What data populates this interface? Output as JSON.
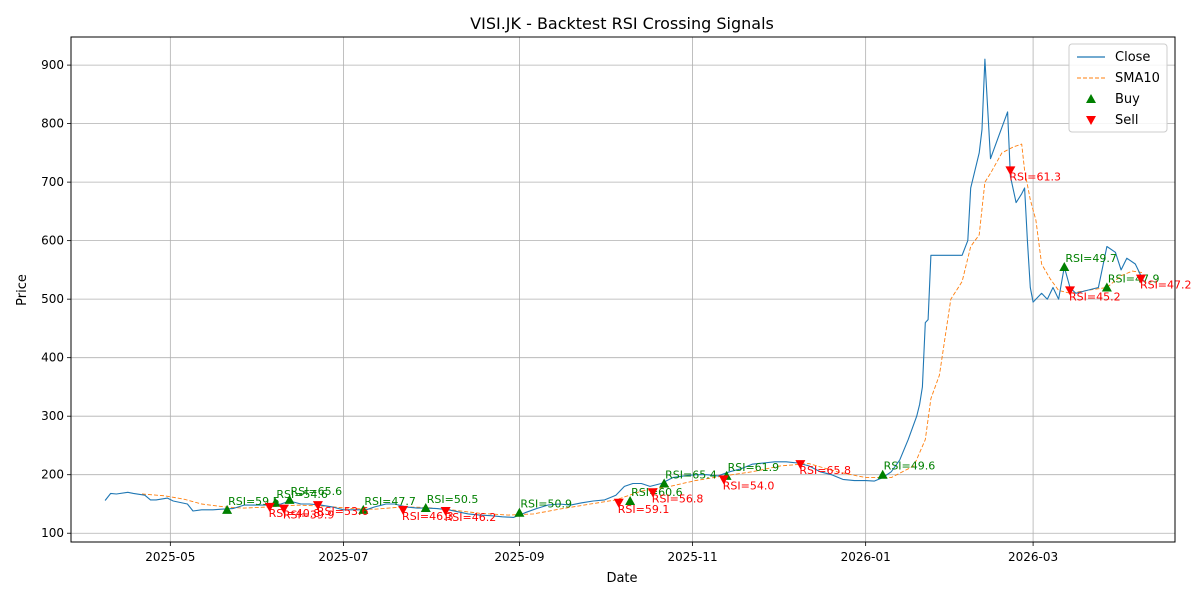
{
  "chart_data": {
    "type": "line",
    "title": "VISI.JK - Backtest RSI Crossing Signals",
    "xlabel": "Date",
    "ylabel": "Price",
    "x_range": [
      "2025-03-27",
      "2026-04-20"
    ],
    "ylim": [
      85,
      948
    ],
    "x_ticks": [
      {
        "date": "2025-05-01",
        "label": "2025-05"
      },
      {
        "date": "2025-07-01",
        "label": "2025-07"
      },
      {
        "date": "2025-09-01",
        "label": "2025-09"
      },
      {
        "date": "2025-11-01",
        "label": "2025-11"
      },
      {
        "date": "2026-01-01",
        "label": "2026-01"
      },
      {
        "date": "2026-03-01",
        "label": "2026-03"
      }
    ],
    "y_ticks": [
      100,
      200,
      300,
      400,
      500,
      600,
      700,
      800,
      900
    ],
    "grid": true,
    "legend_position": "top-right",
    "legend": [
      {
        "label": "Close",
        "kind": "line",
        "color": "#1f77b4"
      },
      {
        "label": "SMA10",
        "kind": "dashed",
        "color": "#ff7f0e"
      },
      {
        "label": "Buy",
        "kind": "marker-up",
        "color": "#008000"
      },
      {
        "label": "Sell",
        "kind": "marker-down",
        "color": "#ff0000"
      }
    ],
    "series": [
      {
        "name": "Close",
        "style": "solid",
        "color": "#1f77b4",
        "points": [
          [
            "2025-04-08",
            156
          ],
          [
            "2025-04-10",
            168
          ],
          [
            "2025-04-12",
            167
          ],
          [
            "2025-04-16",
            170
          ],
          [
            "2025-04-18",
            168
          ],
          [
            "2025-04-22",
            165
          ],
          [
            "2025-04-24",
            157
          ],
          [
            "2025-04-26",
            157
          ],
          [
            "2025-04-30",
            160
          ],
          [
            "2025-05-02",
            155
          ],
          [
            "2025-05-07",
            150
          ],
          [
            "2025-05-09",
            138
          ],
          [
            "2025-05-12",
            140
          ],
          [
            "2025-05-16",
            140
          ],
          [
            "2025-05-19",
            141
          ],
          [
            "2025-05-23",
            142
          ],
          [
            "2025-05-27",
            148
          ],
          [
            "2025-06-01",
            148
          ],
          [
            "2025-06-05",
            148
          ],
          [
            "2025-06-09",
            150
          ],
          [
            "2025-06-12",
            155
          ],
          [
            "2025-06-16",
            150
          ],
          [
            "2025-06-19",
            150
          ],
          [
            "2025-06-23",
            148
          ],
          [
            "2025-06-27",
            145
          ],
          [
            "2025-07-01",
            140
          ],
          [
            "2025-07-05",
            140
          ],
          [
            "2025-07-09",
            140
          ],
          [
            "2025-07-12",
            145
          ],
          [
            "2025-07-16",
            150
          ],
          [
            "2025-07-19",
            150
          ],
          [
            "2025-07-23",
            145
          ],
          [
            "2025-07-27",
            143
          ],
          [
            "2025-07-30",
            143
          ],
          [
            "2025-08-03",
            142
          ],
          [
            "2025-08-07",
            140
          ],
          [
            "2025-08-11",
            136
          ],
          [
            "2025-08-14",
            133
          ],
          [
            "2025-08-18",
            131
          ],
          [
            "2025-08-22",
            130
          ],
          [
            "2025-08-26",
            128
          ],
          [
            "2025-08-30",
            127
          ],
          [
            "2025-09-03",
            135
          ],
          [
            "2025-09-07",
            142
          ],
          [
            "2025-09-11",
            148
          ],
          [
            "2025-09-15",
            150
          ],
          [
            "2025-09-19",
            148
          ],
          [
            "2025-09-23",
            152
          ],
          [
            "2025-09-27",
            155
          ],
          [
            "2025-10-01",
            157
          ],
          [
            "2025-10-05",
            165
          ],
          [
            "2025-10-08",
            180
          ],
          [
            "2025-10-11",
            185
          ],
          [
            "2025-10-14",
            185
          ],
          [
            "2025-10-17",
            180
          ],
          [
            "2025-10-21",
            185
          ],
          [
            "2025-10-25",
            195
          ],
          [
            "2025-10-29",
            198
          ],
          [
            "2025-11-02",
            200
          ],
          [
            "2025-11-06",
            200
          ],
          [
            "2025-11-10",
            198
          ],
          [
            "2025-11-14",
            205
          ],
          [
            "2025-11-18",
            210
          ],
          [
            "2025-11-22",
            218
          ],
          [
            "2025-11-26",
            220
          ],
          [
            "2025-11-30",
            222
          ],
          [
            "2025-12-04",
            222
          ],
          [
            "2025-12-08",
            220
          ],
          [
            "2025-12-12",
            215
          ],
          [
            "2025-12-16",
            205
          ],
          [
            "2025-12-20",
            200
          ],
          [
            "2025-12-24",
            192
          ],
          [
            "2025-12-28",
            190
          ],
          [
            "2026-01-01",
            190
          ],
          [
            "2026-01-04",
            189
          ],
          [
            "2026-01-07",
            195
          ],
          [
            "2026-01-10",
            205
          ],
          [
            "2026-01-13",
            225
          ],
          [
            "2026-01-16",
            260
          ],
          [
            "2026-01-19",
            300
          ],
          [
            "2026-01-20",
            320
          ],
          [
            "2026-01-21",
            350
          ],
          [
            "2026-01-22",
            460
          ],
          [
            "2026-01-23",
            465
          ],
          [
            "2026-01-24",
            575
          ],
          [
            "2026-01-27",
            575
          ],
          [
            "2026-01-31",
            575
          ],
          [
            "2026-02-04",
            575
          ],
          [
            "2026-02-06",
            600
          ],
          [
            "2026-02-07",
            690
          ],
          [
            "2026-02-10",
            750
          ],
          [
            "2026-02-11",
            790
          ],
          [
            "2026-02-12",
            910
          ],
          [
            "2026-02-14",
            740
          ],
          [
            "2026-02-17",
            780
          ],
          [
            "2026-02-20",
            820
          ],
          [
            "2026-02-21",
            710
          ],
          [
            "2026-02-23",
            665
          ],
          [
            "2026-02-25",
            680
          ],
          [
            "2026-02-26",
            690
          ],
          [
            "2026-02-27",
            600
          ],
          [
            "2026-02-28",
            520
          ],
          [
            "2026-03-01",
            495
          ],
          [
            "2026-03-04",
            510
          ],
          [
            "2026-03-06",
            500
          ],
          [
            "2026-03-08",
            520
          ],
          [
            "2026-03-10",
            500
          ],
          [
            "2026-03-12",
            555
          ],
          [
            "2026-03-14",
            520
          ],
          [
            "2026-03-16",
            510
          ],
          [
            "2026-03-20",
            515
          ],
          [
            "2026-03-24",
            520
          ],
          [
            "2026-03-27",
            590
          ],
          [
            "2026-03-30",
            580
          ],
          [
            "2026-04-01",
            550
          ],
          [
            "2026-04-03",
            570
          ],
          [
            "2026-04-06",
            560
          ],
          [
            "2026-04-09",
            530
          ]
        ]
      },
      {
        "name": "SMA10",
        "style": "dashed",
        "color": "#ff7f0e",
        "points": [
          [
            "2025-04-21",
            167
          ],
          [
            "2025-04-29",
            164
          ],
          [
            "2025-05-06",
            158
          ],
          [
            "2025-05-12",
            150
          ],
          [
            "2025-05-20",
            145
          ],
          [
            "2025-05-27",
            143
          ],
          [
            "2025-06-05",
            145
          ],
          [
            "2025-06-15",
            148
          ],
          [
            "2025-06-25",
            146
          ],
          [
            "2025-07-04",
            142
          ],
          [
            "2025-07-12",
            141
          ],
          [
            "2025-07-22",
            145
          ],
          [
            "2025-07-30",
            144
          ],
          [
            "2025-08-08",
            140
          ],
          [
            "2025-08-18",
            134
          ],
          [
            "2025-08-28",
            131
          ],
          [
            "2025-09-06",
            133
          ],
          [
            "2025-09-15",
            141
          ],
          [
            "2025-09-25",
            149
          ],
          [
            "2025-10-05",
            157
          ],
          [
            "2025-10-14",
            172
          ],
          [
            "2025-10-24",
            180
          ],
          [
            "2025-11-02",
            190
          ],
          [
            "2025-11-12",
            198
          ],
          [
            "2025-11-22",
            205
          ],
          [
            "2025-12-02",
            215
          ],
          [
            "2025-12-12",
            219
          ],
          [
            "2025-12-22",
            205
          ],
          [
            "2026-01-01",
            195
          ],
          [
            "2026-01-10",
            195
          ],
          [
            "2026-01-18",
            215
          ],
          [
            "2026-01-22",
            260
          ],
          [
            "2026-01-24",
            330
          ],
          [
            "2026-01-27",
            370
          ],
          [
            "2026-01-31",
            500
          ],
          [
            "2026-02-04",
            530
          ],
          [
            "2026-02-07",
            590
          ],
          [
            "2026-02-10",
            610
          ],
          [
            "2026-02-12",
            700
          ],
          [
            "2026-02-14",
            715
          ],
          [
            "2026-02-18",
            750
          ],
          [
            "2026-02-22",
            760
          ],
          [
            "2026-02-25",
            765
          ],
          [
            "2026-02-26",
            720
          ],
          [
            "2026-02-28",
            670
          ],
          [
            "2026-03-02",
            635
          ],
          [
            "2026-03-04",
            560
          ],
          [
            "2026-03-07",
            535
          ],
          [
            "2026-03-10",
            515
          ],
          [
            "2026-03-14",
            510
          ],
          [
            "2026-03-20",
            515
          ],
          [
            "2026-03-27",
            520
          ],
          [
            "2026-04-01",
            540
          ],
          [
            "2026-04-05",
            548
          ],
          [
            "2026-04-09",
            545
          ]
        ]
      }
    ],
    "buy_signals": [
      {
        "date": "2025-05-21",
        "price": 140,
        "label": "RSI=59.5"
      },
      {
        "date": "2025-06-07",
        "price": 152,
        "label": "RSI=54.6"
      },
      {
        "date": "2025-06-12",
        "price": 157,
        "label": "RSI=65.6"
      },
      {
        "date": "2025-07-08",
        "price": 140,
        "label": "RSI=47.7"
      },
      {
        "date": "2025-07-30",
        "price": 143,
        "label": "RSI=50.5"
      },
      {
        "date": "2025-09-01",
        "price": 135,
        "label": "RSI=50.9"
      },
      {
        "date": "2025-10-10",
        "price": 155,
        "label": "RSI=60.6"
      },
      {
        "date": "2025-10-22",
        "price": 185,
        "label": "RSI=65.4"
      },
      {
        "date": "2025-11-13",
        "price": 198,
        "label": "RSI=61.9"
      },
      {
        "date": "2026-01-07",
        "price": 200,
        "label": "RSI=49.6"
      },
      {
        "date": "2026-03-12",
        "price": 555,
        "label": "RSI=49.7"
      },
      {
        "date": "2026-03-27",
        "price": 520,
        "label": "RSI=47.9"
      }
    ],
    "sell_signals": [
      {
        "date": "2025-06-05",
        "price": 145,
        "label": "RSI=40.8"
      },
      {
        "date": "2025-06-10",
        "price": 142,
        "label": "RSI=39.9"
      },
      {
        "date": "2025-06-22",
        "price": 148,
        "label": "RSI=53.6"
      },
      {
        "date": "2025-07-22",
        "price": 140,
        "label": "RSI=46.3"
      },
      {
        "date": "2025-08-06",
        "price": 138,
        "label": "RSI=46.2"
      },
      {
        "date": "2025-10-06",
        "price": 152,
        "label": "RSI=59.1"
      },
      {
        "date": "2025-10-18",
        "price": 170,
        "label": "RSI=56.8"
      },
      {
        "date": "2025-11-12",
        "price": 192,
        "label": "RSI=54.0"
      },
      {
        "date": "2025-12-09",
        "price": 218,
        "label": "RSI=65.8"
      },
      {
        "date": "2026-02-21",
        "price": 720,
        "label": "RSI=61.3"
      },
      {
        "date": "2026-03-14",
        "price": 515,
        "label": "RSI=45.2"
      },
      {
        "date": "2026-04-08",
        "price": 535,
        "label": "RSI=47.2"
      }
    ]
  }
}
